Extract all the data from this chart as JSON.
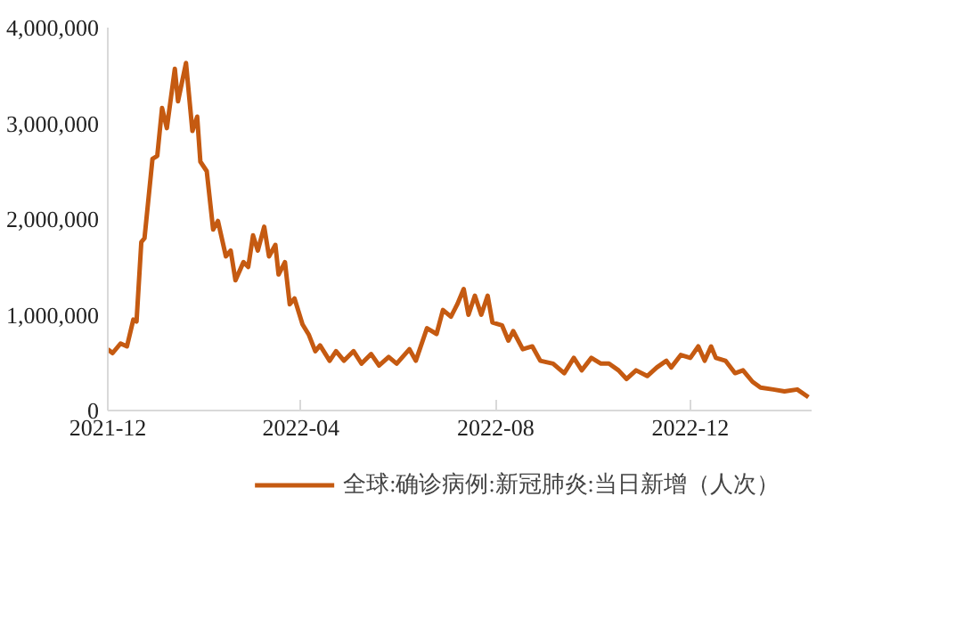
{
  "chart_data": {
    "type": "line",
    "x": [
      "2021-12-01",
      "2021-12-04",
      "2021-12-09",
      "2021-12-13",
      "2021-12-17",
      "2021-12-19",
      "2021-12-22",
      "2021-12-24",
      "2021-12-29",
      "2022-01-01",
      "2022-01-04",
      "2022-01-07",
      "2022-01-12",
      "2022-01-14",
      "2022-01-19",
      "2022-01-23",
      "2022-01-26",
      "2022-01-28",
      "2022-02-01",
      "2022-02-05",
      "2022-02-08",
      "2022-02-13",
      "2022-02-16",
      "2022-02-19",
      "2022-02-24",
      "2022-02-27",
      "2022-03-02",
      "2022-03-05",
      "2022-03-09",
      "2022-03-12",
      "2022-03-16",
      "2022-03-18",
      "2022-03-22",
      "2022-03-25",
      "2022-03-28",
      "2022-04-02",
      "2022-04-06",
      "2022-04-10",
      "2022-04-13",
      "2022-04-19",
      "2022-04-23",
      "2022-04-28",
      "2022-05-04",
      "2022-05-09",
      "2022-05-15",
      "2022-05-20",
      "2022-05-26",
      "2022-05-31",
      "2022-06-08",
      "2022-06-12",
      "2022-06-19",
      "2022-06-25",
      "2022-06-29",
      "2022-07-04",
      "2022-07-08",
      "2022-07-12",
      "2022-07-15",
      "2022-07-19",
      "2022-07-23",
      "2022-07-27",
      "2022-07-30",
      "2022-08-05",
      "2022-08-09",
      "2022-08-12",
      "2022-08-18",
      "2022-08-24",
      "2022-08-29",
      "2022-09-06",
      "2022-09-13",
      "2022-09-19",
      "2022-09-24",
      "2022-09-30",
      "2022-10-06",
      "2022-10-11",
      "2022-10-17",
      "2022-10-22",
      "2022-10-28",
      "2022-11-04",
      "2022-11-10",
      "2022-11-16",
      "2022-11-19",
      "2022-11-25",
      "2022-12-01",
      "2022-12-06",
      "2022-12-10",
      "2022-12-14",
      "2022-12-17",
      "2022-12-23",
      "2022-12-29",
      "2023-01-03",
      "2023-01-09",
      "2023-01-14",
      "2023-01-22",
      "2023-01-29",
      "2023-02-06",
      "2023-02-13"
    ],
    "series": [
      {
        "name": "全球:确诊病例:新冠肺炎:当日新增（人次）",
        "color": "#c55a11",
        "values": [
          640000,
          600000,
          700000,
          670000,
          950000,
          930000,
          1760000,
          1800000,
          2630000,
          2660000,
          3160000,
          2950000,
          3570000,
          3230000,
          3630000,
          2920000,
          3070000,
          2600000,
          2500000,
          1890000,
          1980000,
          1610000,
          1670000,
          1360000,
          1550000,
          1500000,
          1830000,
          1670000,
          1920000,
          1610000,
          1730000,
          1420000,
          1550000,
          1110000,
          1170000,
          900000,
          790000,
          620000,
          680000,
          520000,
          620000,
          520000,
          620000,
          490000,
          590000,
          470000,
          560000,
          490000,
          640000,
          520000,
          860000,
          800000,
          1050000,
          980000,
          1110000,
          1270000,
          1000000,
          1200000,
          1000000,
          1200000,
          920000,
          890000,
          730000,
          830000,
          640000,
          670000,
          520000,
          490000,
          390000,
          550000,
          420000,
          550000,
          490000,
          490000,
          420000,
          330000,
          420000,
          360000,
          450000,
          520000,
          450000,
          580000,
          550000,
          670000,
          520000,
          670000,
          550000,
          520000,
          390000,
          420000,
          300000,
          240000,
          220000,
          200000,
          220000,
          140000
        ]
      }
    ],
    "xlim": [
      "2021-12-01",
      "2023-02-15"
    ],
    "xticks": [
      "2021-12",
      "2022-04",
      "2022-08",
      "2022-12"
    ],
    "ylim": [
      0,
      4000000
    ],
    "yticks": [
      {
        "value": 0,
        "label": "0"
      },
      {
        "value": 1000000,
        "label": "1,000,000"
      },
      {
        "value": 2000000,
        "label": "2,000,000"
      },
      {
        "value": 3000000,
        "label": "3,000,000"
      },
      {
        "value": 4000000,
        "label": "4,000,000"
      }
    ],
    "grid": false,
    "legend": "bottom",
    "line_style": "solid",
    "marker": "none"
  }
}
